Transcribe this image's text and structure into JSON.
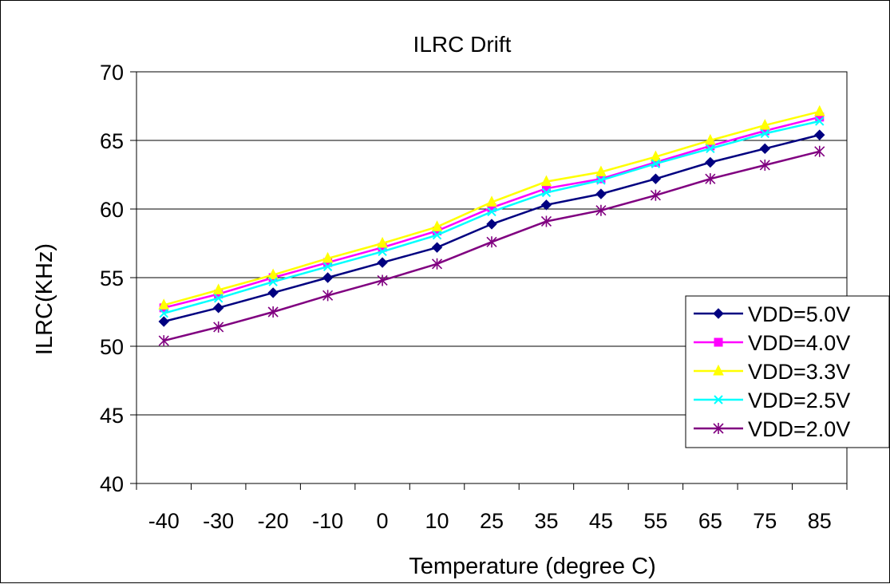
{
  "chart_data": {
    "type": "line",
    "title": "ILRC Drift",
    "xlabel": "Temperature (degree C)",
    "ylabel": "ILRC(KHz)",
    "categories": [
      "-40",
      "-30",
      "-20",
      "-10",
      "0",
      "10",
      "25",
      "35",
      "45",
      "55",
      "65",
      "75",
      "85"
    ],
    "ylim": [
      40,
      70
    ],
    "yticks": [
      40,
      45,
      50,
      55,
      60,
      65,
      70
    ],
    "grid": "horizontal",
    "legend_position": "right",
    "series": [
      {
        "name": "VDD=5.0V",
        "color": "#000080",
        "marker": "diamond",
        "values": [
          51.8,
          52.8,
          53.9,
          55.0,
          56.1,
          57.2,
          58.9,
          60.3,
          61.1,
          62.2,
          63.4,
          64.4,
          65.4
        ]
      },
      {
        "name": "VDD=4.0V",
        "color": "#ff00ff",
        "marker": "square",
        "values": [
          52.8,
          53.8,
          55.0,
          56.1,
          57.2,
          58.4,
          60.1,
          61.5,
          62.2,
          63.4,
          64.6,
          65.7,
          66.7
        ]
      },
      {
        "name": "VDD=3.3V",
        "color": "#ffff00",
        "marker": "triangle",
        "values": [
          53.0,
          54.1,
          55.2,
          56.4,
          57.5,
          58.7,
          60.5,
          62.0,
          62.7,
          63.8,
          65.0,
          66.1,
          67.1
        ]
      },
      {
        "name": "VDD=2.5V",
        "color": "#00ffff",
        "marker": "x",
        "values": [
          52.4,
          53.5,
          54.7,
          55.8,
          56.9,
          58.1,
          59.8,
          61.2,
          62.1,
          63.3,
          64.4,
          65.5,
          66.4
        ]
      },
      {
        "name": "VDD=2.0V",
        "color": "#800080",
        "marker": "star",
        "values": [
          50.4,
          51.4,
          52.5,
          53.7,
          54.8,
          56.0,
          57.6,
          59.1,
          59.9,
          61.0,
          62.2,
          63.2,
          64.2
        ]
      }
    ]
  }
}
